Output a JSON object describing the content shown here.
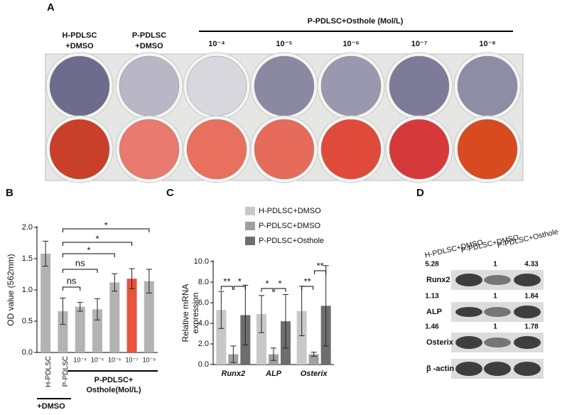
{
  "panel_a": {
    "label": "A",
    "title": "P-PDLSC+Osthole (Mol/L)",
    "controls": [
      [
        "H-PDLSC",
        "+DMSO"
      ],
      [
        "P-PDLSC",
        "+DMSO"
      ]
    ],
    "concentrations": [
      "10⁻⁴",
      "10⁻⁵",
      "10⁻⁶",
      "10⁻⁷",
      "10⁻⁸"
    ],
    "alp_colors": [
      "#6d6c8c",
      "#b9b7c6",
      "#d9d7de",
      "#8b89a2",
      "#9a98ae",
      "#7d7b97",
      "#8f8da6"
    ],
    "ars_colors": [
      "#c8402a",
      "#e87a70",
      "#e8705f",
      "#e66b5b",
      "#e04a3a",
      "#d6393a",
      "#d84a20"
    ]
  },
  "chart_data": [
    {
      "type": "bar",
      "panel": "B",
      "ylabel": "OD value (562mm)",
      "categories": [
        "H-PDLSC",
        "P-PDLSC",
        "10⁻⁴",
        "10⁻⁵",
        "10⁻⁶",
        "10⁻⁷",
        "10⁻⁸"
      ],
      "values": [
        1.58,
        0.66,
        0.73,
        0.69,
        1.12,
        1.18,
        1.14
      ],
      "errors": [
        0.2,
        0.21,
        0.07,
        0.17,
        0.14,
        0.16,
        0.19
      ],
      "colors": [
        "#b3b3b3",
        "#b3b3b3",
        "#b3b3b3",
        "#b3b3b3",
        "#b3b3b3",
        "#e8553e",
        "#b3b3b3"
      ],
      "ylim": [
        0,
        2
      ],
      "yticks": [
        {
          "value": 0,
          "label": "0.0"
        },
        {
          "value": 0.5,
          "label": "0.5"
        },
        {
          "value": 1,
          "label": "1.0"
        },
        {
          "value": 1.5,
          "label": "1.5"
        },
        {
          "value": 2,
          "label": "2.0"
        }
      ],
      "group_labels": [
        "+DMSO",
        "P-PDLSC+",
        "Osthole(Mol/L)"
      ],
      "annotations": [
        "ns",
        "ns",
        "*",
        "*",
        "*"
      ]
    },
    {
      "type": "grouped_bar",
      "panel": "C",
      "ylabel": [
        "Relative mRNA",
        "expression"
      ],
      "categories": [
        "Runx2",
        "ALP",
        "Osterix"
      ],
      "series": [
        {
          "name": "H-PDLSC+DMSO",
          "color": "#c8c8c8",
          "values": [
            5.3,
            4.9,
            5.2
          ],
          "errors": [
            1.8,
            1.8,
            2.4
          ]
        },
        {
          "name": "P-PDLSC+DMSO",
          "color": "#a0a0a0",
          "values": [
            1.0,
            1.0,
            1.0
          ],
          "errors": [
            0.8,
            0.6,
            0.2
          ]
        },
        {
          "name": "P-PDLSC+Osthole",
          "color": "#6e6e6e",
          "values": [
            4.8,
            4.2,
            5.7
          ],
          "errors": [
            2.9,
            2.6,
            3.9
          ]
        }
      ],
      "ylim": [
        0,
        10
      ],
      "yticks": [
        {
          "value": 0,
          "label": "0.0"
        },
        {
          "value": 2,
          "label": "2.0"
        },
        {
          "value": 4,
          "label": "4.0"
        },
        {
          "value": 6,
          "label": "6.0"
        },
        {
          "value": 8,
          "label": "8.0"
        },
        {
          "value": 10,
          "label": "10.0"
        }
      ],
      "annotations": [
        "**",
        "*",
        "*",
        "*",
        "**",
        "**"
      ]
    }
  ],
  "panel_d": {
    "label": "D",
    "columns": [
      "H-PDLSC+DMSO",
      "P-PDLSC+DMSO",
      "P-PDLSC+Osthole"
    ],
    "rows": [
      {
        "label": "Runx2",
        "values": [
          5.28,
          1,
          4.33
        ]
      },
      {
        "label": "ALP",
        "values": [
          1.13,
          1,
          1.84
        ]
      },
      {
        "label": "Osterix",
        "values": [
          1.46,
          1,
          1.78
        ]
      },
      {
        "label": "β -actin"
      }
    ]
  }
}
